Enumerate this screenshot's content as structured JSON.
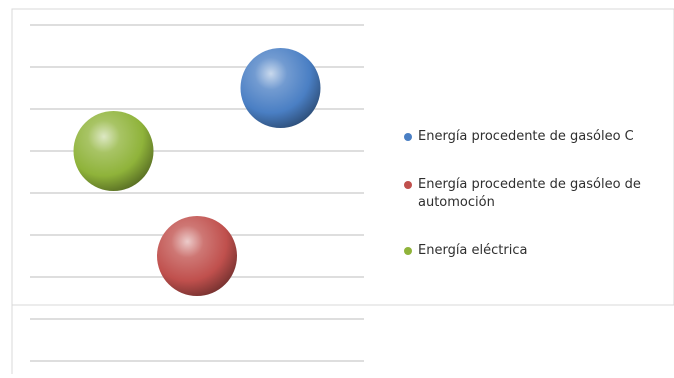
{
  "chart_data": {
    "type": "scatter",
    "title": "",
    "xlabel": "",
    "ylabel": "",
    "grid": true,
    "legend": "right",
    "xlim": [
      0,
      4
    ],
    "ylim": [
      0,
      8
    ],
    "series": [
      {
        "name": "Energía procedente de gasóleo C",
        "color": "#4a7fc4",
        "points": [
          {
            "x": 3,
            "y": 6.5
          }
        ]
      },
      {
        "name": "Energía procedente de gasóleo de automoción",
        "color": "#c0504d",
        "points": [
          {
            "x": 2,
            "y": 2.5
          }
        ]
      },
      {
        "name": "Energía eléctrica",
        "color": "#8fb33a",
        "points": [
          {
            "x": 1,
            "y": 5
          }
        ]
      }
    ]
  }
}
